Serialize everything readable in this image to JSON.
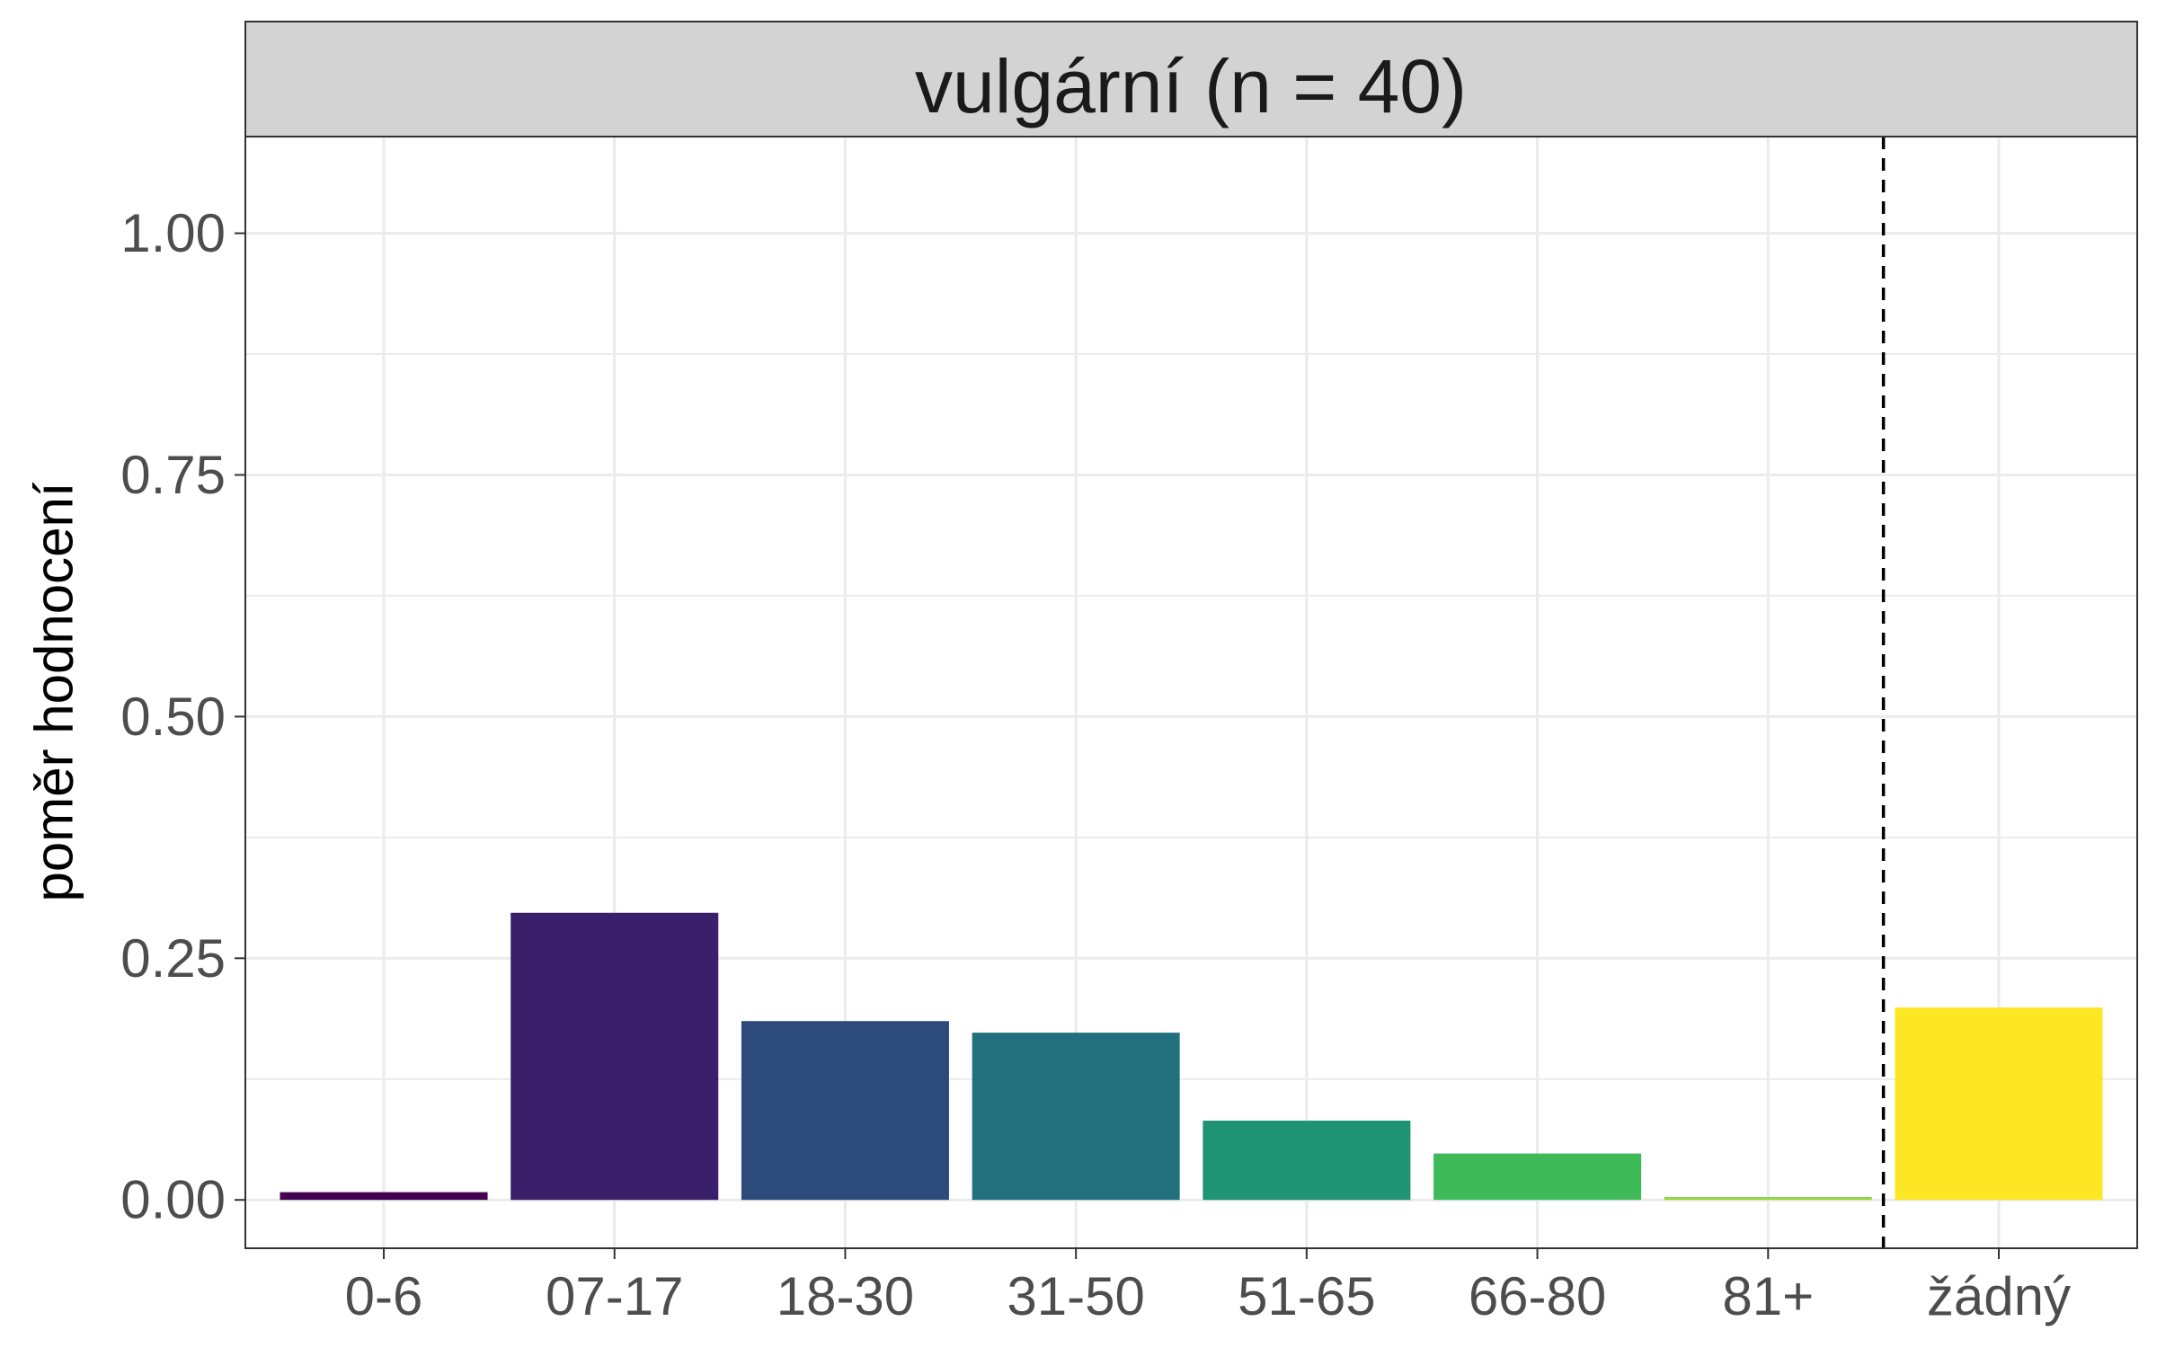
{
  "chart_data": {
    "type": "bar",
    "title": "vulgární (n = 40)",
    "xlabel": "",
    "ylabel": "poměr hodnocení",
    "categories": [
      "0-6",
      "07-17",
      "18-30",
      "31-50",
      "51-65",
      "66-80",
      "81+",
      "žádný"
    ],
    "values": [
      0.008,
      0.297,
      0.185,
      0.173,
      0.082,
      0.048,
      0.003,
      0.199
    ],
    "colors": [
      "#440154",
      "#3B1F6B",
      "#2D4B7A",
      "#22707E",
      "#1F9474",
      "#3FBA58",
      "#8ED646",
      "#FDE725"
    ],
    "ylim": [
      -0.05,
      1.1
    ],
    "yticks": [
      0.0,
      0.25,
      0.5,
      0.75,
      1.0
    ],
    "ytick_labels": [
      "0.00",
      "0.25",
      "0.50",
      "0.75",
      "1.00"
    ],
    "reference_line": {
      "between": [
        "81+",
        "žádný"
      ],
      "style": "dashed"
    },
    "grid": true,
    "legend": "none"
  }
}
